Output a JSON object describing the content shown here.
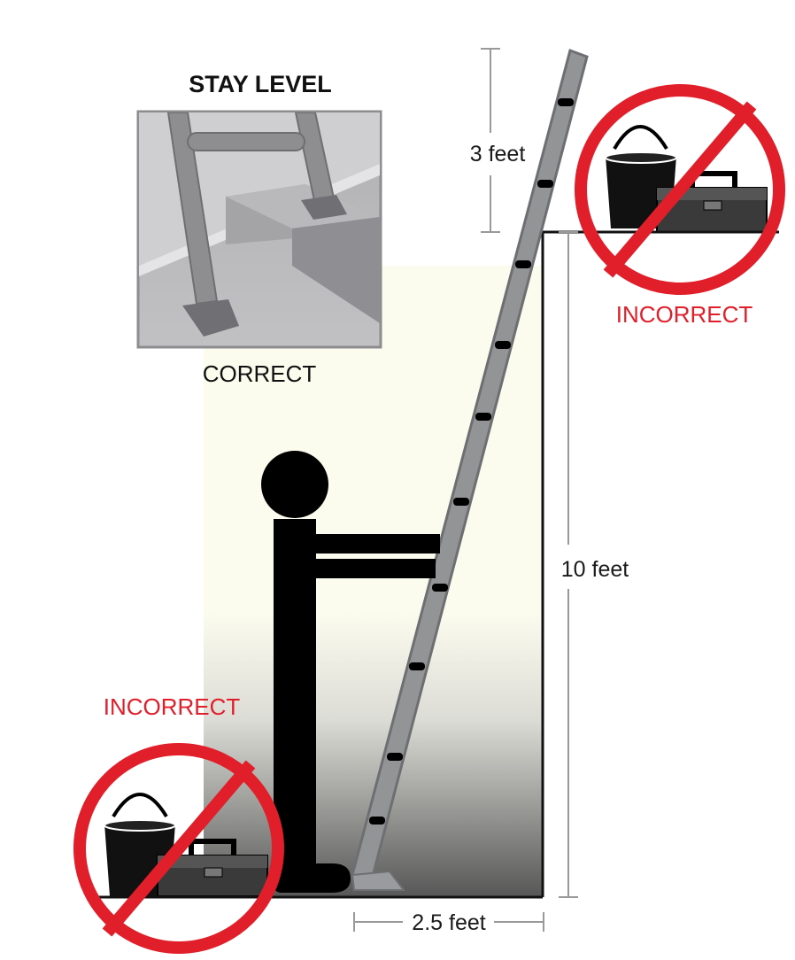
{
  "inset": {
    "title": "STAY LEVEL",
    "caption": "CORRECT"
  },
  "warnings": {
    "top_right": "INCORRECT",
    "bottom_left": "INCORRECT"
  },
  "dimensions": {
    "top_extension": "3 feet",
    "wall_height": "10 feet",
    "base_distance": "2.5 feet"
  },
  "colors": {
    "warning": "#e01f2b",
    "ladder": "#8c8d90",
    "figure": "#000000",
    "wall_light": "#fbfbee",
    "wall_dark": "#575757",
    "inset_bg": "#b5b5b7"
  },
  "icons": [
    "no-sign-icon",
    "bucket-icon",
    "toolbox-icon",
    "person-figure",
    "ladder"
  ]
}
